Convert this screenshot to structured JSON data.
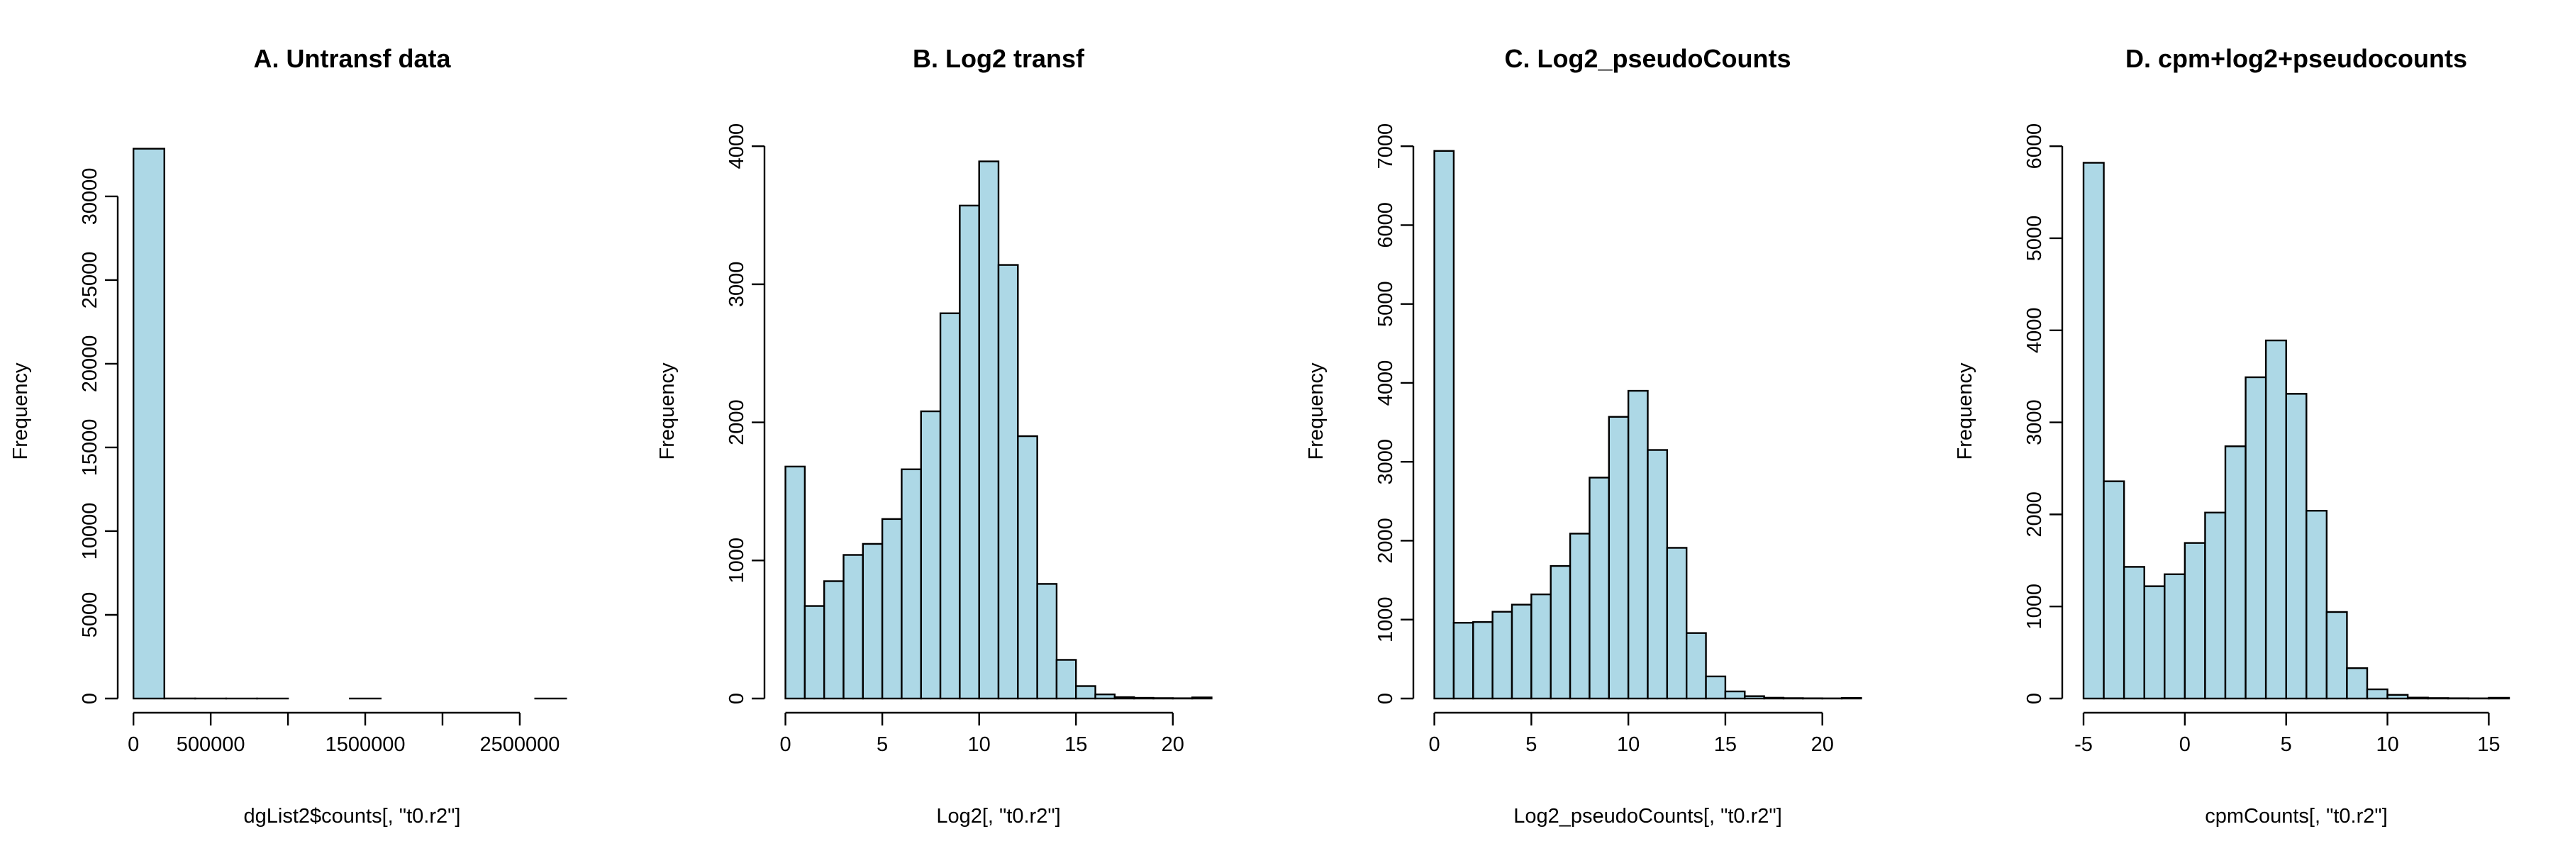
{
  "figure": {
    "background": "#ffffff",
    "bar_fill": "#add8e6",
    "stroke": "#000000"
  },
  "chart_data": [
    {
      "type": "bar",
      "title": "A. Untransf data",
      "xlabel": "dgList2$counts[, \"t0.r2\"]",
      "ylabel": "Frequency",
      "xlim": [
        0,
        2800000
      ],
      "ylim": [
        0,
        33000
      ],
      "xticks": [
        0,
        500000,
        1000000,
        1500000,
        2000000,
        2500000
      ],
      "xtick_labels": [
        "0",
        "500000",
        "",
        "1500000",
        "",
        "2500000"
      ],
      "yticks": [
        0,
        5000,
        10000,
        15000,
        20000,
        25000,
        30000
      ],
      "ytick_labels": [
        "0",
        "5000",
        "10000",
        "15000",
        "20000",
        "25000",
        "30000"
      ],
      "bin_edges": [
        0,
        200000,
        400000,
        600000,
        800000,
        1000000,
        1200000,
        1400000,
        1600000,
        1800000,
        2000000,
        2200000,
        2400000,
        2600000,
        2800000
      ],
      "values": [
        32850,
        5,
        2,
        1,
        1,
        0,
        0,
        1,
        0,
        0,
        0,
        0,
        0,
        1
      ]
    },
    {
      "type": "bar",
      "title": "B. Log2 transf",
      "xlabel": "Log2[, \"t0.r2\"]",
      "ylabel": "Frequency",
      "xlim": [
        0,
        22
      ],
      "ylim": [
        0,
        4000
      ],
      "xticks": [
        0,
        5,
        10,
        15,
        20
      ],
      "xtick_labels": [
        "0",
        "5",
        "10",
        "15",
        "20"
      ],
      "yticks": [
        0,
        1000,
        2000,
        3000,
        4000
      ],
      "ytick_labels": [
        "0",
        "1000",
        "2000",
        "3000",
        "4000"
      ],
      "bin_edges": [
        0,
        1,
        2,
        3,
        4,
        5,
        6,
        7,
        8,
        9,
        10,
        11,
        12,
        13,
        14,
        15,
        16,
        17,
        18,
        19,
        20,
        21,
        22
      ],
      "values": [
        1680,
        670,
        850,
        1040,
        1120,
        1300,
        1660,
        2080,
        2790,
        3570,
        3890,
        3140,
        1900,
        830,
        280,
        90,
        30,
        10,
        5,
        3,
        2,
        8
      ]
    },
    {
      "type": "bar",
      "title": "C. Log2_pseudoCounts",
      "xlabel": "Log2_pseudoCounts[, \"t0.r2\"]",
      "ylabel": "Frequency",
      "xlim": [
        0,
        22
      ],
      "ylim": [
        0,
        7000
      ],
      "xticks": [
        0,
        5,
        10,
        15,
        20
      ],
      "xtick_labels": [
        "0",
        "5",
        "10",
        "15",
        "20"
      ],
      "yticks": [
        0,
        1000,
        2000,
        3000,
        4000,
        5000,
        6000,
        7000
      ],
      "ytick_labels": [
        "0",
        "1000",
        "2000",
        "3000",
        "4000",
        "5000",
        "6000",
        "7000"
      ],
      "bin_edges": [
        0,
        1,
        2,
        3,
        4,
        5,
        6,
        7,
        8,
        9,
        10,
        11,
        12,
        13,
        14,
        15,
        16,
        17,
        18,
        19,
        20,
        21,
        22
      ],
      "values": [
        6940,
        960,
        970,
        1100,
        1190,
        1320,
        1680,
        2090,
        2800,
        3570,
        3900,
        3150,
        1910,
        830,
        280,
        90,
        30,
        10,
        5,
        3,
        2,
        8
      ]
    },
    {
      "type": "bar",
      "title": "D. cpm+log2+pseudocounts",
      "xlabel": "cpmCounts[, \"t0.r2\"]",
      "ylabel": "Frequency",
      "xlim": [
        -5,
        16
      ],
      "ylim": [
        0,
        6000
      ],
      "xticks": [
        -5,
        0,
        5,
        10,
        15
      ],
      "xtick_labels": [
        "-5",
        "0",
        "5",
        "10",
        "15"
      ],
      "yticks": [
        0,
        1000,
        2000,
        3000,
        4000,
        5000,
        6000
      ],
      "ytick_labels": [
        "0",
        "1000",
        "2000",
        "3000",
        "4000",
        "5000",
        "6000"
      ],
      "bin_edges": [
        -5,
        -4,
        -3,
        -2,
        -1,
        0,
        1,
        2,
        3,
        4,
        5,
        6,
        7,
        8,
        9,
        10,
        11,
        12,
        13,
        14,
        15,
        16
      ],
      "values": [
        5820,
        2360,
        1430,
        1220,
        1350,
        1690,
        2020,
        2740,
        3490,
        3890,
        3310,
        2040,
        940,
        330,
        100,
        40,
        10,
        5,
        3,
        2,
        8
      ]
    }
  ]
}
